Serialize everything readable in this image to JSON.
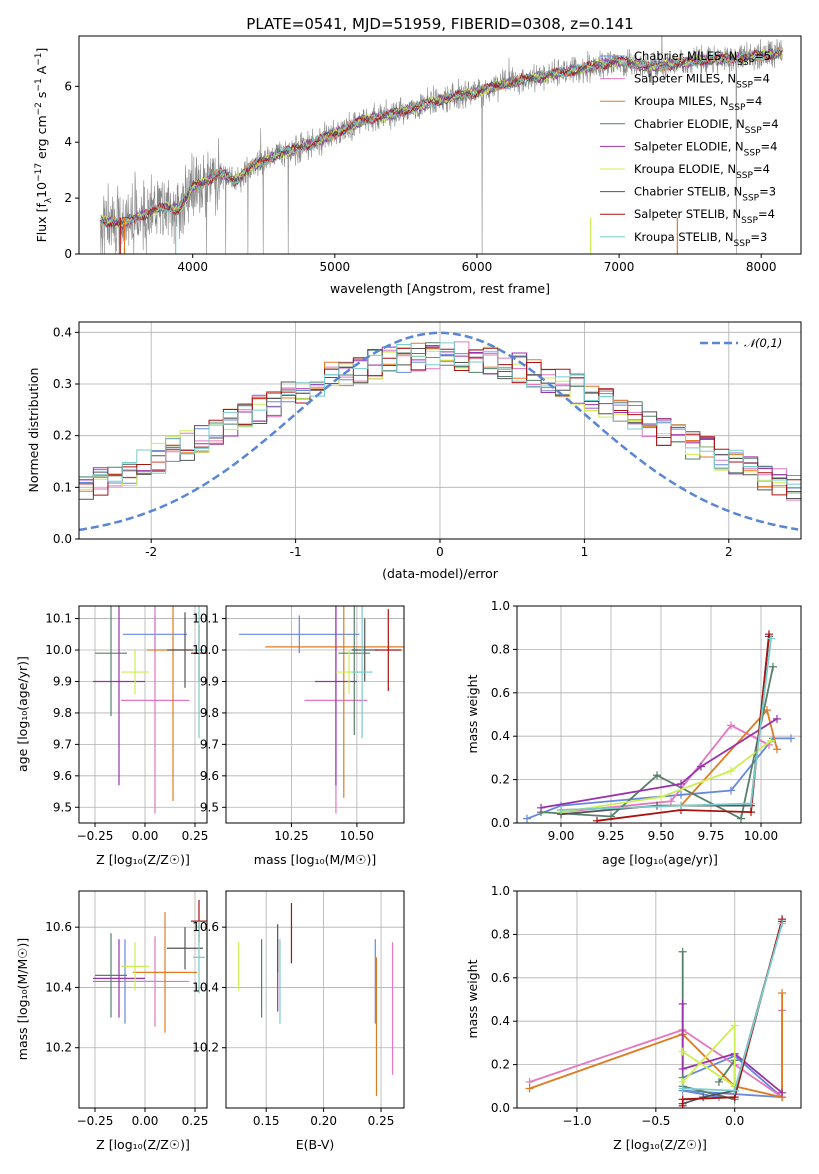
{
  "colors": {
    "Chabrier MILES": "#6688dd",
    "Salpeter MILES": "#e377c2",
    "Kroupa MILES": "#e07b22",
    "Chabrier ELODIE": "#55806a",
    "Salpeter ELODIE": "#9933aa",
    "Kroupa ELODIE": "#ccee55",
    "Chabrier STELIB": "#555555",
    "Salpeter STELIB": "#aa1111",
    "Kroupa STELIB": "#77cccc",
    "observed": "#888888",
    "gaussian": "#5a86d6"
  },
  "chart_data": [
    {
      "id": "spectrum",
      "type": "line",
      "title": "PLATE=0541, MJD=51959, FIBERID=0308, z=0.141",
      "xlabel": "wavelength [Angstrom, rest frame]",
      "ylabel": "Flux [f_λ 10^-17 erg cm^-2 s^-1 A^-1]",
      "xlim": [
        3200,
        8280
      ],
      "ylim": [
        0,
        7.8
      ],
      "xticks": [
        4000,
        5000,
        6000,
        7000,
        8000
      ],
      "yticks": [
        0,
        2,
        4,
        6
      ],
      "legend_position": "top-right",
      "legend": [
        {
          "label": "Chabrier MILES, N_SSP=5",
          "model": "Chabrier MILES"
        },
        {
          "label": "Salpeter MILES, N_SSP=4",
          "model": "Salpeter MILES"
        },
        {
          "label": "Kroupa MILES, N_SSP=4",
          "model": "Kroupa MILES"
        },
        {
          "label": "Chabrier ELODIE, N_SSP=4",
          "model": "Chabrier ELODIE"
        },
        {
          "label": "Salpeter ELODIE, N_SSP=4",
          "model": "Salpeter ELODIE"
        },
        {
          "label": "Kroupa ELODIE, N_SSP=4",
          "model": "Kroupa ELODIE"
        },
        {
          "label": "Chabrier STELIB, N_SSP=3",
          "model": "Chabrier STELIB"
        },
        {
          "label": "Salpeter STELIB, N_SSP=4",
          "model": "Salpeter STELIB"
        },
        {
          "label": "Kroupa STELIB, N_SSP=3",
          "model": "Kroupa STELIB"
        }
      ],
      "continuum": [
        [
          3350,
          1.2
        ],
        [
          3500,
          1.1
        ],
        [
          3600,
          1.3
        ],
        [
          3700,
          1.5
        ],
        [
          3800,
          1.7
        ],
        [
          3900,
          1.6
        ],
        [
          4000,
          2.4
        ],
        [
          4100,
          2.6
        ],
        [
          4200,
          2.9
        ],
        [
          4300,
          2.6
        ],
        [
          4400,
          3.1
        ],
        [
          4500,
          3.3
        ],
        [
          4600,
          3.6
        ],
        [
          4700,
          3.7
        ],
        [
          4800,
          3.9
        ],
        [
          5000,
          4.3
        ],
        [
          5200,
          4.8
        ],
        [
          5400,
          5.0
        ],
        [
          5600,
          5.3
        ],
        [
          5800,
          5.6
        ],
        [
          6000,
          5.8
        ],
        [
          6200,
          6.1
        ],
        [
          6400,
          6.3
        ],
        [
          6600,
          6.5
        ],
        [
          6800,
          6.7
        ],
        [
          7000,
          6.9
        ],
        [
          7200,
          6.7
        ],
        [
          7400,
          6.8
        ],
        [
          7600,
          6.95
        ],
        [
          7800,
          7.0
        ],
        [
          8000,
          7.1
        ],
        [
          8150,
          7.2
        ]
      ]
    },
    {
      "id": "residual-histogram",
      "type": "bar",
      "xlabel": "(data-model)/error",
      "ylabel": "Normed distribution",
      "xlim": [
        -2.5,
        2.5
      ],
      "ylim": [
        0,
        0.42
      ],
      "xticks": [
        -2,
        -1,
        0,
        1,
        2
      ],
      "yticks": [
        0.0,
        0.1,
        0.2,
        0.3,
        0.4
      ],
      "grid": true,
      "legend_position": "top-right",
      "gaussian_label": "𝒩(0,1)",
      "bin_width": 0.1
    },
    {
      "id": "age-vs-Z",
      "type": "scatter",
      "xlabel": "Z [log10(Z/Z☉)]",
      "ylabel": "age [log10(age/yr)]",
      "xlim": [
        -0.33,
        0.31
      ],
      "ylim": [
        9.45,
        10.14
      ],
      "xticks": [
        -0.25,
        0.0,
        0.25
      ],
      "xticklabels": [
        "−0.25",
        "0.00",
        "0.25"
      ],
      "yticks": [
        9.5,
        9.6,
        9.7,
        9.8,
        9.9,
        10.0,
        10.1
      ],
      "grid": true,
      "points": [
        {
          "model": "Chabrier MILES",
          "x": 0.05,
          "y": 10.05,
          "xerr": 0.16,
          "yerr": 0.06
        },
        {
          "model": "Salpeter MILES",
          "x": 0.05,
          "y": 9.84,
          "xerr": 0.17,
          "yerr": 0.36
        },
        {
          "model": "Kroupa MILES",
          "x": 0.14,
          "y": 10.0,
          "xerr": 0.13,
          "yerr": 0.48
        },
        {
          "model": "Chabrier ELODIE",
          "x": -0.17,
          "y": 9.99,
          "xerr": 0.08,
          "yerr": 0.2
        },
        {
          "model": "Salpeter ELODIE",
          "x": -0.13,
          "y": 9.9,
          "xerr": 0.13,
          "yerr": 0.33
        },
        {
          "model": "Kroupa ELODIE",
          "x": -0.05,
          "y": 9.93,
          "xerr": 0.07,
          "yerr": 0.07
        },
        {
          "model": "Chabrier STELIB",
          "x": 0.2,
          "y": 10.0,
          "xerr": 0.09,
          "yerr": 0.12
        },
        {
          "model": "Salpeter STELIB",
          "x": 0.27,
          "y": 9.99,
          "xerr": 0.04,
          "yerr": 0.09
        },
        {
          "model": "Kroupa STELIB",
          "x": 0.27,
          "y": 10.0,
          "xerr": 0.03,
          "yerr": 0.28
        }
      ]
    },
    {
      "id": "age-vs-mass",
      "type": "scatter",
      "xlabel": "mass [log10(M/M☉)]",
      "xlim": [
        10.0,
        10.68
      ],
      "ylim": [
        9.45,
        10.14
      ],
      "xticks": [
        10.25,
        10.5
      ],
      "xticklabels": [
        "10.25",
        "10.50"
      ],
      "yticks": [
        9.5,
        9.6,
        9.7,
        9.8,
        9.9,
        10.0,
        10.1
      ],
      "grid": true,
      "points": [
        {
          "model": "Chabrier MILES",
          "x": 10.28,
          "y": 10.05,
          "xerr": 0.23,
          "yerr": 0.06
        },
        {
          "model": "Salpeter MILES",
          "x": 10.42,
          "y": 9.84,
          "xerr": 0.12,
          "yerr": 0.36
        },
        {
          "model": "Kroupa MILES",
          "x": 10.45,
          "y": 10.01,
          "xerr": 0.3,
          "yerr": 0.48
        },
        {
          "model": "Chabrier ELODIE",
          "x": 10.49,
          "y": 9.99,
          "xerr": 0.06,
          "yerr": 0.26
        },
        {
          "model": "Salpeter ELODIE",
          "x": 10.42,
          "y": 9.9,
          "xerr": 0.08,
          "yerr": 0.33
        },
        {
          "model": "Kroupa ELODIE",
          "x": 10.47,
          "y": 9.93,
          "xerr": 0.05,
          "yerr": 0.07
        },
        {
          "model": "Chabrier STELIB",
          "x": 10.53,
          "y": 10.0,
          "xerr": 0.05,
          "yerr": 0.1
        },
        {
          "model": "Salpeter STELIB",
          "x": 10.62,
          "y": 10.0,
          "xerr": 0.05,
          "yerr": 0.13
        },
        {
          "model": "Kroupa STELIB",
          "x": 10.52,
          "y": 9.93,
          "xerr": 0.04,
          "yerr": 0.21
        }
      ]
    },
    {
      "id": "weight-vs-age",
      "type": "line",
      "xlabel": "age [log10(age/yr)]",
      "ylabel": "mass weight",
      "xlim": [
        8.78,
        10.2
      ],
      "ylim": [
        0,
        1.0
      ],
      "xticks": [
        9.0,
        9.25,
        9.5,
        9.75,
        10.0
      ],
      "xticklabels": [
        "9.00",
        "9.25",
        "9.50",
        "9.75",
        "10.00"
      ],
      "yticks": [
        0.0,
        0.2,
        0.4,
        0.6,
        0.8,
        1.0
      ],
      "grid": true,
      "series": [
        {
          "model": "Chabrier MILES",
          "points": [
            [
              8.83,
              0.02
            ],
            [
              9.0,
              0.08
            ],
            [
              9.6,
              0.13
            ],
            [
              9.85,
              0.15
            ],
            [
              10.06,
              0.39
            ],
            [
              10.15,
              0.39
            ]
          ]
        },
        {
          "model": "Salpeter MILES",
          "points": [
            [
              9.0,
              0.05
            ],
            [
              9.55,
              0.1
            ],
            [
              9.85,
              0.45
            ],
            [
              10.04,
              0.36
            ]
          ]
        },
        {
          "model": "Kroupa MILES",
          "points": [
            [
              9.0,
              0.06
            ],
            [
              9.6,
              0.08
            ],
            [
              10.03,
              0.52
            ],
            [
              10.08,
              0.34
            ]
          ]
        },
        {
          "model": "Chabrier ELODIE",
          "points": [
            [
              8.9,
              0.05
            ],
            [
              9.25,
              0.03
            ],
            [
              9.48,
              0.22
            ],
            [
              9.9,
              0.02
            ],
            [
              10.06,
              0.72
            ]
          ]
        },
        {
          "model": "Salpeter ELODIE",
          "points": [
            [
              8.9,
              0.07
            ],
            [
              9.6,
              0.18
            ],
            [
              9.7,
              0.26
            ],
            [
              10.08,
              0.48
            ]
          ]
        },
        {
          "model": "Kroupa ELODIE",
          "points": [
            [
              9.0,
              0.05
            ],
            [
              9.5,
              0.12
            ],
            [
              9.85,
              0.24
            ],
            [
              10.05,
              0.38
            ]
          ]
        },
        {
          "model": "Chabrier STELIB",
          "points": [
            [
              9.0,
              0.04
            ],
            [
              9.48,
              0.08
            ],
            [
              9.95,
              0.08
            ],
            [
              10.04,
              0.86
            ]
          ]
        },
        {
          "model": "Salpeter STELIB",
          "points": [
            [
              9.18,
              0.01
            ],
            [
              9.6,
              0.06
            ],
            [
              9.95,
              0.05
            ],
            [
              10.04,
              0.87
            ]
          ]
        },
        {
          "model": "Kroupa STELIB",
          "points": [
            [
              9.0,
              0.06
            ],
            [
              9.6,
              0.08
            ],
            [
              9.95,
              0.09
            ],
            [
              10.05,
              0.85
            ]
          ]
        }
      ]
    },
    {
      "id": "mass-vs-Z",
      "type": "scatter",
      "xlabel": "Z [log10(Z/Z☉)]",
      "ylabel": "mass [log10(M/M☉)]",
      "xlim": [
        -0.33,
        0.31
      ],
      "ylim": [
        10.0,
        10.72
      ],
      "xticks": [
        -0.25,
        0.0,
        0.25
      ],
      "xticklabels": [
        "−0.25",
        "0.00",
        "0.25"
      ],
      "yticks": [
        10.2,
        10.4,
        10.6
      ],
      "grid": true,
      "points": [
        {
          "model": "Chabrier MILES",
          "x": -0.1,
          "y": 10.42,
          "xerr": 0.16,
          "yerr": 0.14
        },
        {
          "model": "Salpeter MILES",
          "x": 0.05,
          "y": 10.42,
          "xerr": 0.17,
          "yerr": 0.15
        },
        {
          "model": "Kroupa MILES",
          "x": 0.1,
          "y": 10.45,
          "xerr": 0.16,
          "yerr": 0.2
        },
        {
          "model": "Chabrier ELODIE",
          "x": -0.17,
          "y": 10.44,
          "xerr": 0.08,
          "yerr": 0.14
        },
        {
          "model": "Salpeter ELODIE",
          "x": -0.13,
          "y": 10.43,
          "xerr": 0.13,
          "yerr": 0.13
        },
        {
          "model": "Kroupa ELODIE",
          "x": -0.05,
          "y": 10.47,
          "xerr": 0.07,
          "yerr": 0.08
        },
        {
          "model": "Chabrier STELIB",
          "x": 0.2,
          "y": 10.53,
          "xerr": 0.09,
          "yerr": 0.07
        },
        {
          "model": "Salpeter STELIB",
          "x": 0.27,
          "y": 10.62,
          "xerr": 0.04,
          "yerr": 0.07
        },
        {
          "model": "Kroupa STELIB",
          "x": 0.27,
          "y": 10.5,
          "xerr": 0.03,
          "yerr": 0.12
        }
      ]
    },
    {
      "id": "mass-vs-EBV",
      "type": "scatter",
      "xlabel": "E(B-V)",
      "xlim": [
        0.115,
        0.27
      ],
      "ylim": [
        10.0,
        10.72
      ],
      "xticks": [
        0.15,
        0.2,
        0.25
      ],
      "xticklabels": [
        "0.15",
        "0.20",
        "0.25"
      ],
      "yticks": [
        10.2,
        10.4,
        10.6
      ],
      "grid": true,
      "points": [
        {
          "model": "Chabrier MILES",
          "x": 0.245,
          "y": 10.42,
          "yerr": 0.14
        },
        {
          "model": "Salpeter MILES",
          "x": 0.26,
          "y": 10.33,
          "yerr": 0.22
        },
        {
          "model": "Kroupa MILES",
          "x": 0.246,
          "y": 10.27,
          "yerr": 0.23
        },
        {
          "model": "Chabrier ELODIE",
          "x": 0.146,
          "y": 10.43,
          "yerr": 0.13
        },
        {
          "model": "Salpeter ELODIE",
          "x": 0.16,
          "y": 10.44,
          "yerr": 0.12
        },
        {
          "model": "Kroupa ELODIE",
          "x": 0.126,
          "y": 10.47,
          "yerr": 0.08
        },
        {
          "model": "Chabrier STELIB",
          "x": 0.16,
          "y": 10.53,
          "yerr": 0.08
        },
        {
          "model": "Salpeter STELIB",
          "x": 0.172,
          "y": 10.58,
          "yerr": 0.1
        },
        {
          "model": "Kroupa STELIB",
          "x": 0.162,
          "y": 10.42,
          "yerr": 0.14
        }
      ]
    },
    {
      "id": "weight-vs-Z",
      "type": "line",
      "xlabel": "Z [log10(Z/Z☉)]",
      "ylabel": "mass weight",
      "xlim": [
        -1.38,
        0.42
      ],
      "ylim": [
        0,
        1.0
      ],
      "xticks": [
        -1.0,
        -0.5,
        0.0
      ],
      "xticklabels": [
        "−1.0",
        "−0.5",
        "0.0"
      ],
      "yticks": [
        0.0,
        0.2,
        0.4,
        0.6,
        0.8,
        1.0
      ],
      "grid": true,
      "series": [
        {
          "model": "Chabrier MILES",
          "points": [
            [
              -0.33,
              0.14
            ],
            [
              0.0,
              0.24
            ],
            [
              0.3,
              0.05
            ],
            [
              -0.33,
              0.08
            ],
            [
              -0.1,
              0.05
            ]
          ]
        },
        {
          "model": "Salpeter MILES",
          "points": [
            [
              -1.3,
              0.12
            ],
            [
              -0.33,
              0.36
            ],
            [
              0.0,
              0.2
            ],
            [
              0.3,
              0.05
            ],
            [
              0.3,
              0.45
            ]
          ]
        },
        {
          "model": "Kroupa MILES",
          "points": [
            [
              -1.3,
              0.09
            ],
            [
              -0.33,
              0.34
            ],
            [
              0.0,
              0.1
            ],
            [
              0.3,
              0.05
            ],
            [
              0.3,
              0.53
            ]
          ]
        },
        {
          "model": "Chabrier ELODIE",
          "points": [
            [
              -0.33,
              0.72
            ],
            [
              -0.33,
              0.1
            ],
            [
              0.0,
              0.04
            ],
            [
              0.0,
              0.22
            ],
            [
              -0.1,
              0.12
            ]
          ]
        },
        {
          "model": "Salpeter ELODIE",
          "points": [
            [
              -0.33,
              0.48
            ],
            [
              -0.33,
              0.18
            ],
            [
              0.0,
              0.25
            ],
            [
              0.3,
              0.07
            ]
          ]
        },
        {
          "model": "Kroupa ELODIE",
          "points": [
            [
              -0.33,
              0.26
            ],
            [
              0.0,
              0.1
            ],
            [
              0.0,
              0.38
            ],
            [
              -0.33,
              0.12
            ]
          ]
        },
        {
          "model": "Chabrier STELIB",
          "points": [
            [
              -0.33,
              0.02
            ],
            [
              -0.2,
              0.05
            ],
            [
              0.0,
              0.08
            ],
            [
              0.3,
              0.86
            ]
          ]
        },
        {
          "model": "Salpeter STELIB",
          "points": [
            [
              -0.33,
              0.01
            ],
            [
              -0.33,
              0.04
            ],
            [
              0.0,
              0.05
            ],
            [
              0.3,
              0.87
            ]
          ]
        },
        {
          "model": "Kroupa STELIB",
          "points": [
            [
              -0.33,
              0.09
            ],
            [
              0.0,
              0.08
            ],
            [
              0.3,
              0.85
            ]
          ]
        }
      ]
    }
  ]
}
